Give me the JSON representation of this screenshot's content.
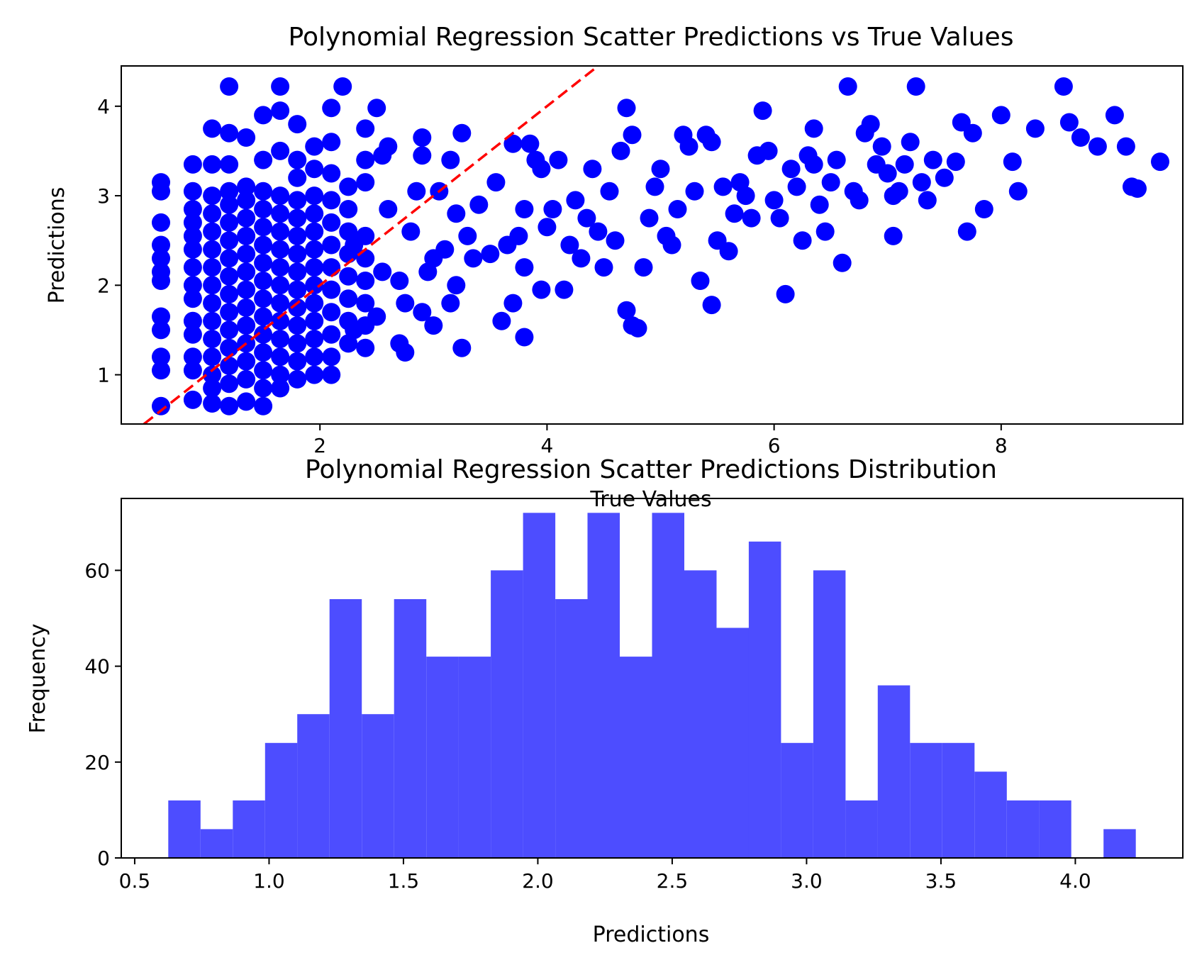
{
  "chart_data": [
    {
      "type": "scatter",
      "title": "Polynomial Regression Scatter Predictions vs True Values",
      "xlabel": "True Values",
      "ylabel": "Predictions",
      "xlim": [
        0.25,
        9.6
      ],
      "ylim": [
        0.45,
        4.45
      ],
      "xticks": [
        2,
        4,
        6,
        8
      ],
      "yticks": [
        1,
        2,
        3,
        4
      ],
      "grid": false,
      "marker_color": "#0000ff",
      "reference_line": {
        "style": "dashed",
        "color": "#ff0000",
        "from": [
          0.25,
          0.25
        ],
        "to": [
          4.6,
          4.6
        ]
      },
      "points": [
        [
          0.6,
          0.65
        ],
        [
          0.6,
          1.05
        ],
        [
          0.6,
          1.2
        ],
        [
          0.6,
          1.5
        ],
        [
          0.6,
          1.65
        ],
        [
          0.6,
          2.05
        ],
        [
          0.6,
          2.15
        ],
        [
          0.6,
          2.3
        ],
        [
          0.6,
          2.45
        ],
        [
          0.6,
          2.7
        ],
        [
          0.6,
          3.05
        ],
        [
          0.6,
          3.15
        ],
        [
          0.88,
          0.72
        ],
        [
          0.88,
          1.05
        ],
        [
          0.88,
          1.2
        ],
        [
          0.88,
          1.45
        ],
        [
          0.88,
          1.6
        ],
        [
          0.88,
          1.85
        ],
        [
          0.88,
          2.0
        ],
        [
          0.88,
          2.2
        ],
        [
          0.88,
          2.4
        ],
        [
          0.88,
          2.55
        ],
        [
          0.88,
          2.7
        ],
        [
          0.88,
          2.85
        ],
        [
          0.88,
          3.05
        ],
        [
          0.88,
          3.35
        ],
        [
          1.05,
          0.68
        ],
        [
          1.05,
          0.85
        ],
        [
          1.05,
          1.0
        ],
        [
          1.05,
          1.2
        ],
        [
          1.05,
          1.4
        ],
        [
          1.05,
          1.6
        ],
        [
          1.05,
          1.8
        ],
        [
          1.05,
          2.0
        ],
        [
          1.05,
          2.2
        ],
        [
          1.05,
          2.4
        ],
        [
          1.05,
          2.6
        ],
        [
          1.05,
          2.8
        ],
        [
          1.05,
          3.0
        ],
        [
          1.05,
          3.35
        ],
        [
          1.05,
          3.75
        ],
        [
          1.2,
          0.65
        ],
        [
          1.2,
          0.9
        ],
        [
          1.2,
          1.1
        ],
        [
          1.2,
          1.3
        ],
        [
          1.2,
          1.5
        ],
        [
          1.2,
          1.7
        ],
        [
          1.2,
          1.9
        ],
        [
          1.2,
          2.1
        ],
        [
          1.2,
          2.3
        ],
        [
          1.2,
          2.5
        ],
        [
          1.2,
          2.7
        ],
        [
          1.2,
          2.9
        ],
        [
          1.2,
          3.05
        ],
        [
          1.2,
          3.35
        ],
        [
          1.2,
          3.7
        ],
        [
          1.2,
          4.22
        ],
        [
          1.35,
          0.7
        ],
        [
          1.35,
          0.95
        ],
        [
          1.35,
          1.15
        ],
        [
          1.35,
          1.35
        ],
        [
          1.35,
          1.55
        ],
        [
          1.35,
          1.75
        ],
        [
          1.35,
          1.95
        ],
        [
          1.35,
          2.15
        ],
        [
          1.35,
          2.35
        ],
        [
          1.35,
          2.55
        ],
        [
          1.35,
          2.75
        ],
        [
          1.35,
          2.95
        ],
        [
          1.35,
          3.1
        ],
        [
          1.35,
          3.65
        ],
        [
          1.5,
          0.65
        ],
        [
          1.5,
          0.85
        ],
        [
          1.5,
          1.05
        ],
        [
          1.5,
          1.25
        ],
        [
          1.5,
          1.45
        ],
        [
          1.5,
          1.65
        ],
        [
          1.5,
          1.85
        ],
        [
          1.5,
          2.05
        ],
        [
          1.5,
          2.25
        ],
        [
          1.5,
          2.45
        ],
        [
          1.5,
          2.65
        ],
        [
          1.5,
          2.85
        ],
        [
          1.5,
          3.05
        ],
        [
          1.5,
          3.4
        ],
        [
          1.5,
          3.9
        ],
        [
          1.65,
          0.85
        ],
        [
          1.65,
          1.0
        ],
        [
          1.65,
          1.2
        ],
        [
          1.65,
          1.4
        ],
        [
          1.65,
          1.6
        ],
        [
          1.65,
          1.8
        ],
        [
          1.65,
          2.0
        ],
        [
          1.65,
          2.2
        ],
        [
          1.65,
          2.4
        ],
        [
          1.65,
          2.6
        ],
        [
          1.65,
          2.8
        ],
        [
          1.65,
          3.0
        ],
        [
          1.65,
          3.5
        ],
        [
          1.65,
          3.95
        ],
        [
          1.65,
          4.22
        ],
        [
          1.8,
          0.95
        ],
        [
          1.8,
          1.15
        ],
        [
          1.8,
          1.35
        ],
        [
          1.8,
          1.55
        ],
        [
          1.8,
          1.75
        ],
        [
          1.8,
          1.95
        ],
        [
          1.8,
          2.15
        ],
        [
          1.8,
          2.35
        ],
        [
          1.8,
          2.55
        ],
        [
          1.8,
          2.75
        ],
        [
          1.8,
          2.95
        ],
        [
          1.8,
          3.2
        ],
        [
          1.8,
          3.4
        ],
        [
          1.8,
          3.8
        ],
        [
          1.95,
          1.0
        ],
        [
          1.95,
          1.2
        ],
        [
          1.95,
          1.4
        ],
        [
          1.95,
          1.6
        ],
        [
          1.95,
          1.8
        ],
        [
          1.95,
          2.0
        ],
        [
          1.95,
          2.2
        ],
        [
          1.95,
          2.4
        ],
        [
          1.95,
          2.6
        ],
        [
          1.95,
          2.8
        ],
        [
          1.95,
          3.0
        ],
        [
          1.95,
          3.3
        ],
        [
          1.95,
          3.55
        ],
        [
          2.1,
          1.0
        ],
        [
          2.1,
          1.2
        ],
        [
          2.1,
          1.45
        ],
        [
          2.1,
          1.7
        ],
        [
          2.1,
          1.95
        ],
        [
          2.1,
          2.2
        ],
        [
          2.1,
          2.45
        ],
        [
          2.1,
          2.7
        ],
        [
          2.1,
          2.95
        ],
        [
          2.1,
          3.25
        ],
        [
          2.1,
          3.6
        ],
        [
          2.1,
          3.98
        ],
        [
          2.2,
          4.22
        ],
        [
          2.25,
          1.35
        ],
        [
          2.25,
          1.6
        ],
        [
          2.25,
          1.85
        ],
        [
          2.25,
          2.1
        ],
        [
          2.25,
          2.35
        ],
        [
          2.25,
          2.6
        ],
        [
          2.25,
          2.85
        ],
        [
          2.25,
          3.1
        ],
        [
          2.3,
          2.45
        ],
        [
          2.3,
          1.5
        ],
        [
          2.4,
          1.3
        ],
        [
          2.4,
          1.55
        ],
        [
          2.4,
          1.8
        ],
        [
          2.4,
          2.05
        ],
        [
          2.4,
          2.3
        ],
        [
          2.4,
          2.55
        ],
        [
          2.4,
          3.15
        ],
        [
          2.4,
          3.4
        ],
        [
          2.4,
          3.75
        ],
        [
          2.5,
          3.98
        ],
        [
          2.5,
          1.65
        ],
        [
          2.55,
          2.15
        ],
        [
          2.55,
          3.45
        ],
        [
          2.6,
          2.85
        ],
        [
          2.6,
          3.55
        ],
        [
          2.7,
          1.35
        ],
        [
          2.7,
          2.05
        ],
        [
          2.75,
          1.25
        ],
        [
          2.75,
          1.8
        ],
        [
          2.8,
          2.6
        ],
        [
          2.85,
          3.05
        ],
        [
          2.9,
          3.65
        ],
        [
          2.9,
          3.45
        ],
        [
          2.9,
          1.7
        ],
        [
          2.95,
          2.15
        ],
        [
          3.0,
          1.55
        ],
        [
          3.0,
          2.3
        ],
        [
          3.05,
          3.05
        ],
        [
          3.1,
          2.4
        ],
        [
          3.15,
          1.8
        ],
        [
          3.15,
          3.4
        ],
        [
          3.2,
          2.0
        ],
        [
          3.2,
          2.8
        ],
        [
          3.25,
          1.3
        ],
        [
          3.25,
          3.7
        ],
        [
          3.3,
          2.55
        ],
        [
          3.35,
          2.3
        ],
        [
          3.4,
          2.9
        ],
        [
          3.5,
          2.35
        ],
        [
          3.55,
          3.15
        ],
        [
          3.6,
          1.6
        ],
        [
          3.65,
          2.45
        ],
        [
          3.7,
          1.8
        ],
        [
          3.7,
          3.58
        ],
        [
          3.75,
          2.55
        ],
        [
          3.8,
          2.85
        ],
        [
          3.8,
          1.42
        ],
        [
          3.8,
          2.2
        ],
        [
          3.85,
          3.58
        ],
        [
          3.9,
          3.4
        ],
        [
          3.95,
          3.3
        ],
        [
          3.95,
          1.95
        ],
        [
          4.0,
          2.65
        ],
        [
          4.05,
          2.85
        ],
        [
          4.1,
          3.4
        ],
        [
          4.15,
          1.95
        ],
        [
          4.2,
          2.45
        ],
        [
          4.25,
          2.95
        ],
        [
          4.3,
          2.3
        ],
        [
          4.35,
          2.75
        ],
        [
          4.4,
          3.3
        ],
        [
          4.45,
          2.6
        ],
        [
          4.5,
          2.2
        ],
        [
          4.55,
          3.05
        ],
        [
          4.6,
          2.5
        ],
        [
          4.65,
          3.5
        ],
        [
          4.7,
          3.98
        ],
        [
          4.75,
          3.68
        ],
        [
          4.7,
          1.72
        ],
        [
          4.75,
          1.55
        ],
        [
          4.8,
          1.52
        ],
        [
          4.85,
          2.2
        ],
        [
          4.9,
          2.75
        ],
        [
          4.95,
          3.1
        ],
        [
          5.0,
          3.3
        ],
        [
          5.05,
          2.55
        ],
        [
          5.1,
          2.45
        ],
        [
          5.15,
          2.85
        ],
        [
          5.2,
          3.68
        ],
        [
          5.25,
          3.55
        ],
        [
          5.3,
          3.05
        ],
        [
          5.35,
          2.05
        ],
        [
          5.4,
          3.68
        ],
        [
          5.45,
          3.6
        ],
        [
          5.45,
          1.78
        ],
        [
          5.5,
          2.5
        ],
        [
          5.55,
          3.1
        ],
        [
          5.6,
          2.38
        ],
        [
          5.65,
          2.8
        ],
        [
          5.7,
          3.15
        ],
        [
          5.75,
          3.0
        ],
        [
          5.8,
          2.75
        ],
        [
          5.85,
          3.45
        ],
        [
          5.9,
          3.95
        ],
        [
          5.95,
          3.5
        ],
        [
          6.0,
          2.95
        ],
        [
          6.05,
          2.75
        ],
        [
          6.1,
          1.9
        ],
        [
          6.15,
          3.3
        ],
        [
          6.2,
          3.1
        ],
        [
          6.25,
          2.5
        ],
        [
          6.3,
          3.45
        ],
        [
          6.35,
          3.75
        ],
        [
          6.35,
          3.35
        ],
        [
          6.4,
          2.9
        ],
        [
          6.45,
          2.6
        ],
        [
          6.5,
          3.15
        ],
        [
          6.55,
          3.4
        ],
        [
          6.6,
          2.25
        ],
        [
          6.65,
          4.22
        ],
        [
          6.7,
          3.05
        ],
        [
          6.75,
          2.95
        ],
        [
          6.8,
          3.7
        ],
        [
          6.85,
          3.8
        ],
        [
          6.9,
          3.35
        ],
        [
          6.95,
          3.55
        ],
        [
          7.0,
          3.25
        ],
        [
          7.05,
          3.0
        ],
        [
          7.05,
          2.55
        ],
        [
          7.1,
          3.05
        ],
        [
          7.15,
          3.35
        ],
        [
          7.2,
          3.6
        ],
        [
          7.25,
          4.22
        ],
        [
          7.3,
          3.15
        ],
        [
          7.35,
          2.95
        ],
        [
          7.4,
          3.4
        ],
        [
          7.5,
          3.2
        ],
        [
          7.6,
          3.38
        ],
        [
          7.65,
          3.82
        ],
        [
          7.7,
          2.6
        ],
        [
          7.75,
          3.7
        ],
        [
          7.85,
          2.85
        ],
        [
          8.0,
          3.9
        ],
        [
          8.1,
          3.38
        ],
        [
          8.15,
          3.05
        ],
        [
          8.3,
          3.75
        ],
        [
          8.55,
          4.22
        ],
        [
          8.6,
          3.82
        ],
        [
          8.7,
          3.65
        ],
        [
          8.85,
          3.55
        ],
        [
          9.0,
          3.9
        ],
        [
          9.1,
          3.55
        ],
        [
          9.15,
          3.1
        ],
        [
          9.2,
          3.08
        ],
        [
          9.4,
          3.38
        ]
      ]
    },
    {
      "type": "histogram",
      "title": "Polynomial Regression Scatter Predictions Distribution",
      "xlabel": "Predictions",
      "ylabel": "Frequency",
      "xlim": [
        0.45,
        4.4
      ],
      "ylim": [
        0,
        75
      ],
      "xticks": [
        "0.5",
        "1.0",
        "1.5",
        "2.0",
        "2.5",
        "3.0",
        "3.5",
        "4.0"
      ],
      "yticks": [
        0,
        20,
        40,
        60
      ],
      "grid": false,
      "bar_color": "#4d4dff",
      "bin_start": 0.625,
      "bin_width": 0.12,
      "counts": [
        12,
        6,
        12,
        24,
        30,
        54,
        30,
        54,
        42,
        42,
        60,
        72,
        54,
        72,
        42,
        72,
        60,
        48,
        66,
        24,
        60,
        12,
        36,
        24,
        24,
        18,
        12,
        12,
        0,
        6
      ]
    }
  ]
}
